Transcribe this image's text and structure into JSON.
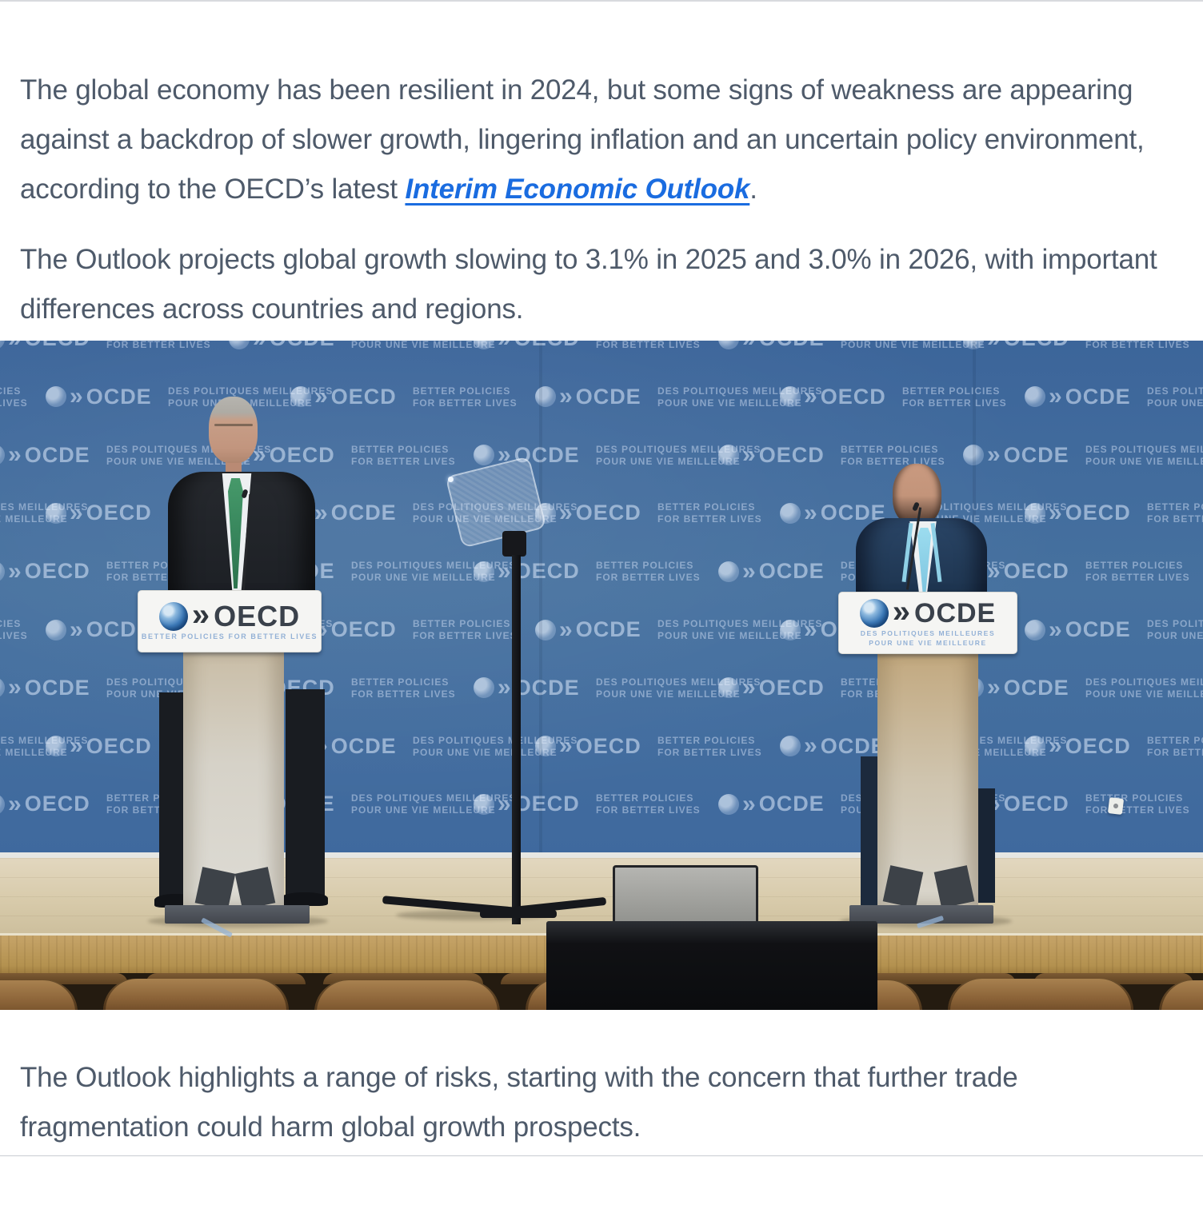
{
  "page": {
    "paragraph1": {
      "before_link": "The global economy has been resilient in 2024, but some signs of weakness are appearing against a backdrop of slower growth, lingering inflation and an uncertain policy environment, according to the OECD’s latest ",
      "link_text": "Interim Economic Outlook",
      "after_link": "."
    },
    "paragraph2": "The Outlook projects global growth slowing to 3.1% in 2025 and 3.0% in 2026, with important differences across countries and regions.",
    "paragraph3": "The Outlook highlights a range of risks, starting with the concern that further trade fragmentation could harm global growth prospects.",
    "link_color": "#1a6ce0",
    "text_color": "#4e5a6a"
  },
  "photo": {
    "description": "Two speakers at white lecterns on a wooden stage in front of a blue OECD press-conference backdrop with a teleprompter between them",
    "backdrop": {
      "base_color": "#41699d",
      "pattern_color": "#c9d9ef",
      "logo_oecd": "OECD",
      "logo_ocde": "OCDE",
      "slogan_en_line1": "BETTER POLICIES",
      "slogan_en_line2": "FOR BETTER LIVES",
      "slogan_fr_line1": "DES POLITIQUES MEILLEURES",
      "slogan_fr_line2": "POUR UNE VIE MEILLEURE"
    },
    "podium_left": {
      "logo": "OECD",
      "tagline": "BETTER POLICIES FOR BETTER LIVES"
    },
    "podium_right": {
      "logo": "OCDE",
      "tagline_line1": "DES POLITIQUES MEILLEURES",
      "tagline_line2": "POUR UNE VIE MEILLEURE"
    }
  }
}
